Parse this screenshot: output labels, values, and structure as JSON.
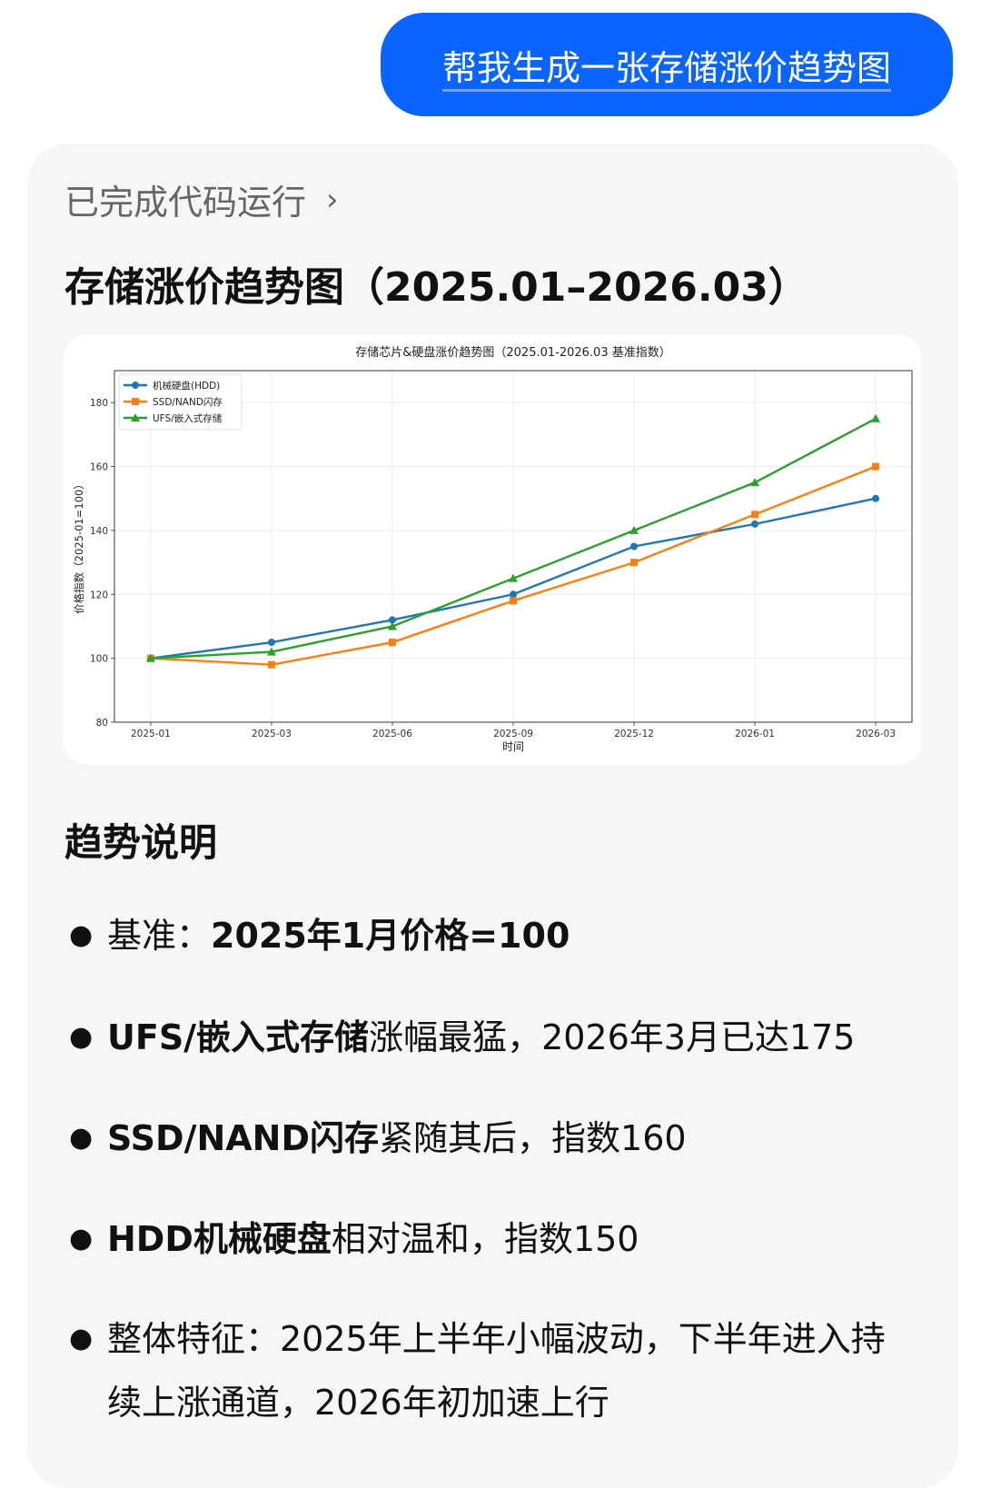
{
  "user_message": "帮我生成一张存储涨价趋势图",
  "response": {
    "status_label": "已完成代码运行",
    "status_chevron_icon": "chevron-right-icon",
    "title": "存储涨价趋势图（2025.01–2026.03）",
    "section_heading": "趋势说明",
    "bullets": [
      {
        "a": "基准：",
        "b": "2025年1月价格=100",
        "a_bold": false
      },
      {
        "a": "UFS/嵌入式存储",
        "b": "涨幅最猛，2026年3月已达175",
        "a_bold": true
      },
      {
        "a": "SSD/NAND闪存",
        "b": "紧随其后，指数160",
        "a_bold": true
      },
      {
        "a": "HDD机械硬盘",
        "b": "相对温和，指数150",
        "a_bold": true
      },
      {
        "a": "整体特征：2025年上半年小幅波动，下半年进入持续上涨通道，2026年初加速上行",
        "b": "",
        "a_bold": false
      }
    ]
  },
  "colors": {
    "user_bubble": "#0a64ff",
    "card_bg": "#f6f6f6"
  },
  "chart_data": {
    "type": "line",
    "title": "存储芯片&硬盘涨价趋势图（2025.01-2026.03 基准指数）",
    "xlabel": "时间",
    "ylabel": "价格指数（2025-01=100）",
    "categories": [
      "2025-01",
      "2025-03",
      "2025-06",
      "2025-09",
      "2025-12",
      "2026-01",
      "2026-03"
    ],
    "ylim": [
      80,
      190
    ],
    "yticks": [
      80,
      100,
      120,
      140,
      160,
      180
    ],
    "grid": true,
    "legend_position": "top-left",
    "series": [
      {
        "name": "机械硬盘(HDD)",
        "color": "#1f77b4",
        "marker": "circle",
        "values": [
          100,
          105,
          112,
          120,
          135,
          142,
          150
        ]
      },
      {
        "name": "SSD/NAND闪存",
        "color": "#ff7f0e",
        "marker": "square",
        "values": [
          100,
          98,
          105,
          118,
          130,
          145,
          160
        ]
      },
      {
        "name": "UFS/嵌入式存储",
        "color": "#2ca02c",
        "marker": "triangle",
        "values": [
          100,
          102,
          110,
          125,
          140,
          155,
          175
        ]
      }
    ]
  }
}
